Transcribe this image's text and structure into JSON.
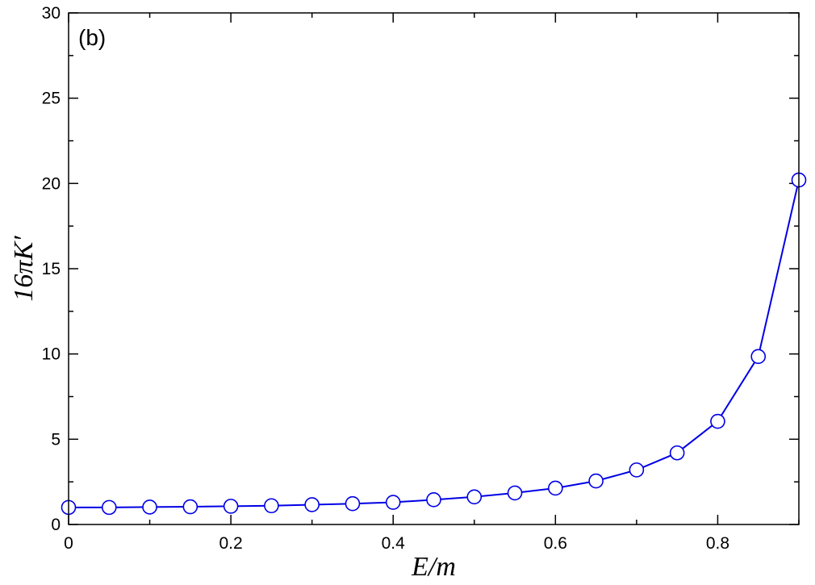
{
  "chart_data": {
    "type": "line",
    "panel_label": "(b)",
    "xlabel": "E/m",
    "ylabel": "16πK′",
    "xlim": [
      0,
      0.9
    ],
    "ylim": [
      0,
      30
    ],
    "x_ticks": [
      0,
      0.2,
      0.4,
      0.6,
      0.8
    ],
    "x_tick_labels": [
      "0",
      "0.2",
      "0.4",
      "0.6",
      "0.8"
    ],
    "y_ticks": [
      0,
      5,
      10,
      15,
      20,
      25,
      30
    ],
    "y_tick_labels": [
      "0",
      "5",
      "10",
      "15",
      "20",
      "25",
      "30"
    ],
    "grid": false,
    "series": [
      {
        "color": "#0000e6",
        "marker": "open-circle",
        "x": [
          0,
          0.05,
          0.1,
          0.15,
          0.2,
          0.25,
          0.3,
          0.35,
          0.4,
          0.45,
          0.5,
          0.55,
          0.6,
          0.65,
          0.7,
          0.75,
          0.8,
          0.85,
          0.9
        ],
        "y": [
          1.0,
          1.0,
          1.02,
          1.04,
          1.07,
          1.1,
          1.16,
          1.22,
          1.3,
          1.45,
          1.62,
          1.85,
          2.13,
          2.55,
          3.2,
          4.2,
          6.05,
          9.85,
          20.2
        ]
      }
    ]
  }
}
